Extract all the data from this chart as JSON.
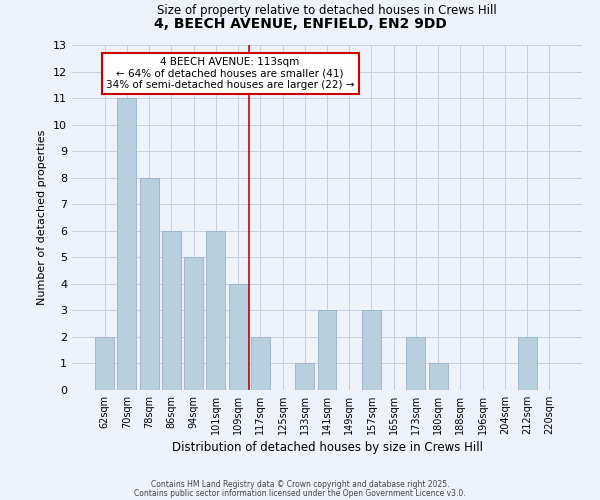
{
  "title": "4, BEECH AVENUE, ENFIELD, EN2 9DD",
  "subtitle": "Size of property relative to detached houses in Crews Hill",
  "xlabel": "Distribution of detached houses by size in Crews Hill",
  "ylabel": "Number of detached properties",
  "footer_line1": "Contains HM Land Registry data © Crown copyright and database right 2025.",
  "footer_line2": "Contains public sector information licensed under the Open Government Licence v3.0.",
  "categories": [
    "62sqm",
    "70sqm",
    "78sqm",
    "86sqm",
    "94sqm",
    "101sqm",
    "109sqm",
    "117sqm",
    "125sqm",
    "133sqm",
    "141sqm",
    "149sqm",
    "157sqm",
    "165sqm",
    "173sqm",
    "180sqm",
    "188sqm",
    "196sqm",
    "204sqm",
    "212sqm",
    "220sqm"
  ],
  "values": [
    2,
    11,
    8,
    6,
    5,
    6,
    4,
    2,
    0,
    1,
    3,
    0,
    3,
    0,
    2,
    1,
    0,
    0,
    0,
    2,
    0
  ],
  "bar_color": "#b8cfe0",
  "bar_edge_color": "#9ab0c8",
  "vline_x": 6.5,
  "vline_color": "#cc0000",
  "annotation_title": "4 BEECH AVENUE: 113sqm",
  "annotation_line1": "← 64% of detached houses are smaller (41)",
  "annotation_line2": "34% of semi-detached houses are larger (22) →",
  "annotation_box_color": "#ffffff",
  "annotation_box_edge": "#cc0000",
  "ylim": [
    0,
    13
  ],
  "yticks": [
    0,
    1,
    2,
    3,
    4,
    5,
    6,
    7,
    8,
    9,
    10,
    11,
    12,
    13
  ],
  "background_color": "#eef2fa",
  "grid_color": "#c5cfe0"
}
